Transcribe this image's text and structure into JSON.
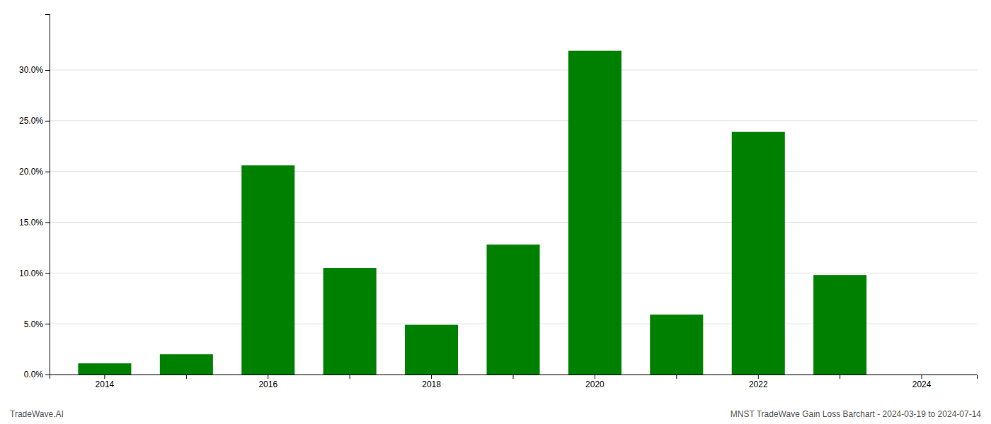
{
  "chart_data": {
    "type": "bar",
    "categories": [
      "2014",
      null,
      "2016",
      null,
      "2018",
      null,
      "2020",
      null,
      "2022",
      null,
      "2024"
    ],
    "values": [
      0.011,
      0.02,
      0.206,
      0.105,
      0.049,
      0.128,
      0.319,
      0.059,
      0.239,
      0.098,
      0.0
    ],
    "color": "#008000",
    "ylim": [
      0,
      0.355
    ],
    "yticks": [
      {
        "value": 0.0,
        "label": "0.0%"
      },
      {
        "value": 0.05,
        "label": "5.0%"
      },
      {
        "value": 0.1,
        "label": "10.0%"
      },
      {
        "value": 0.15,
        "label": "15.0%"
      },
      {
        "value": 0.2,
        "label": "20.0%"
      },
      {
        "value": 0.25,
        "label": "25.0%"
      },
      {
        "value": 0.3,
        "label": "30.0%"
      }
    ],
    "grid": true,
    "annotations": [
      "TradeWave.AI",
      "MNST TradeWave Gain Loss Barchart - 2024-03-19 to 2024-07-14"
    ]
  }
}
